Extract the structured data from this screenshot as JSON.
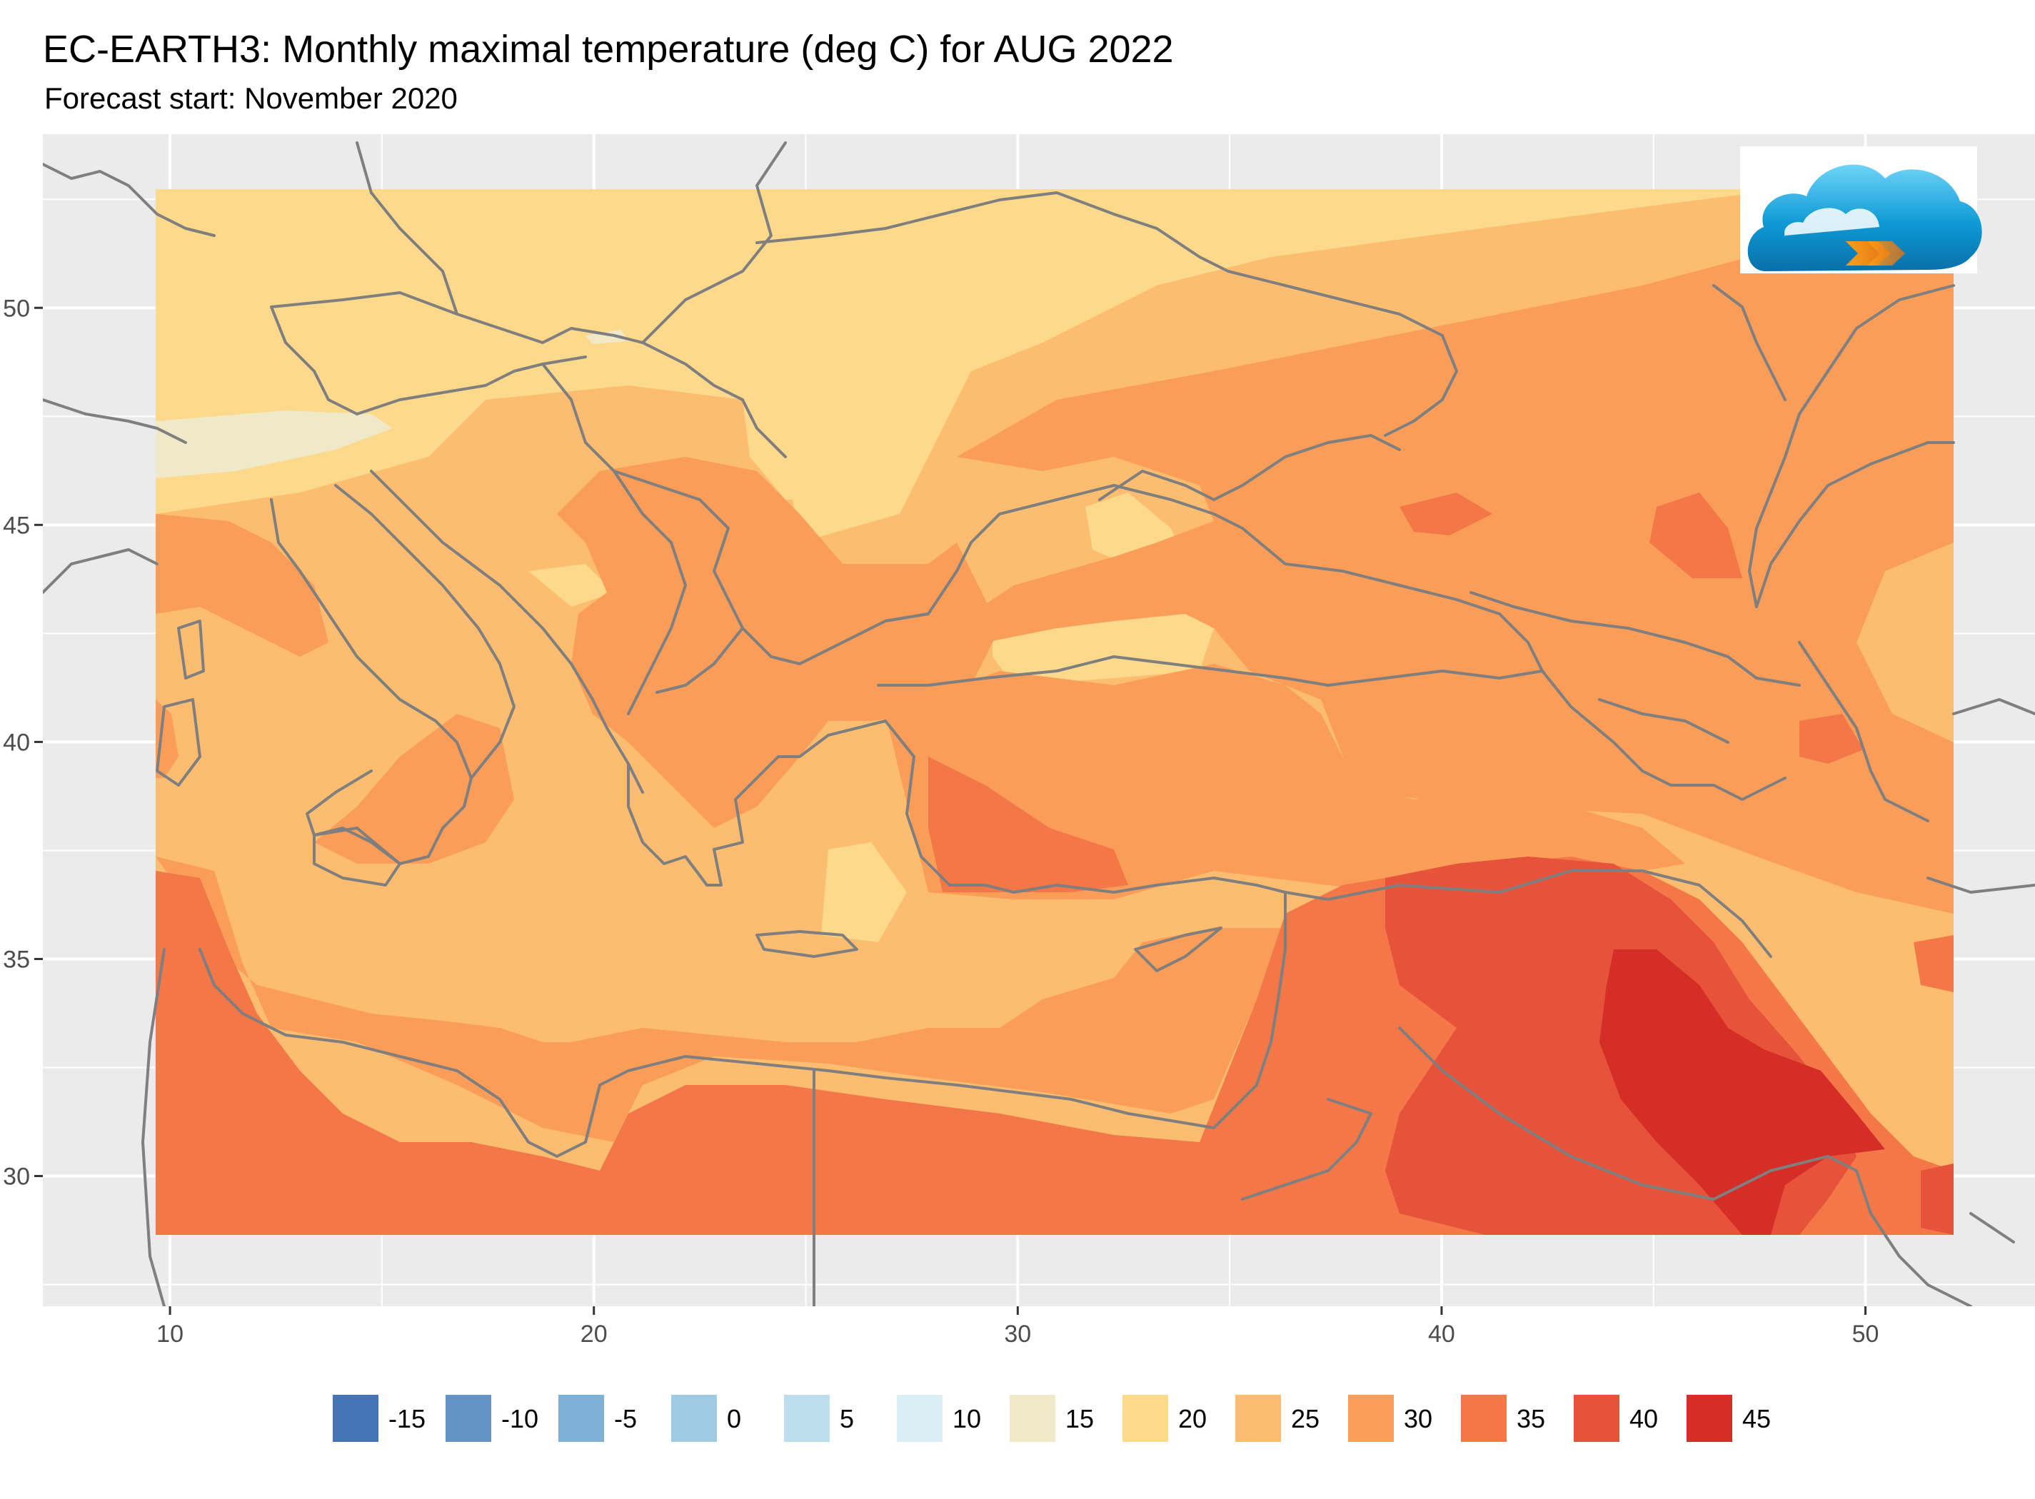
{
  "title": "EC-EARTH3: Monthly maximal temperature (deg C) for AUG 2022",
  "subtitle": "Forecast start: November 2020",
  "map": {
    "lon_range": [
      7,
      54
    ],
    "lat_range": [
      27,
      54
    ],
    "x_ticks": [
      {
        "value": 10,
        "label": "10"
      },
      {
        "value": 20,
        "label": "20"
      },
      {
        "value": 30,
        "label": "30"
      },
      {
        "value": 40,
        "label": "40"
      },
      {
        "value": 50,
        "label": "50"
      }
    ],
    "y_ticks": [
      {
        "value": 30,
        "label": "30"
      },
      {
        "value": 35,
        "label": "35"
      },
      {
        "value": 40,
        "label": "40"
      },
      {
        "value": 45,
        "label": "45"
      },
      {
        "value": 50,
        "label": "50"
      }
    ],
    "field_extent": {
      "lon": [
        9.5,
        51.5
      ],
      "lat": [
        28.5,
        53
      ]
    },
    "panel_background": "#ebebeb",
    "gridline_color": "#ffffff",
    "border_color": "#7f7f7f"
  },
  "legend": [
    {
      "label": "-15",
      "color": "#4575b4"
    },
    {
      "label": "-10",
      "color": "#6394c4"
    },
    {
      "label": "-5",
      "color": "#7fb1d6"
    },
    {
      "label": "0",
      "color": "#9ecbe2"
    },
    {
      "label": "5",
      "color": "#bcdeed"
    },
    {
      "label": "10",
      "color": "#dbeef6"
    },
    {
      "label": "15",
      "color": "#efe9c8"
    },
    {
      "label": "20",
      "color": "#fdd98c"
    },
    {
      "label": "25",
      "color": "#fdbd70"
    },
    {
      "label": "30",
      "color": "#f99d59"
    },
    {
      "label": "35",
      "color": "#f47748"
    },
    {
      "label": "40",
      "color": "#e6533a"
    },
    {
      "label": "45",
      "color": "#d42e26"
    }
  ],
  "logo": {
    "name": "cloud-logo"
  }
}
